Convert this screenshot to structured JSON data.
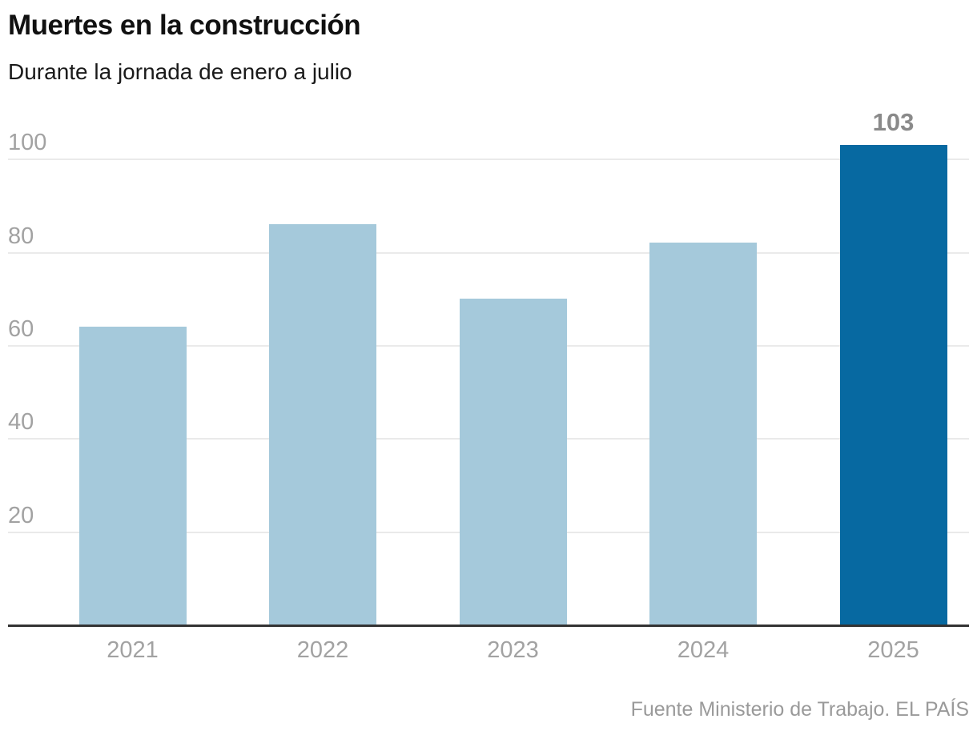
{
  "header": {
    "title": "Muertes en la construcción",
    "subtitle": "Durante la jornada de enero a julio"
  },
  "source": "Fuente Ministerio de Trabajo. EL PAÍS",
  "chart_data": {
    "type": "bar",
    "title": "Muertes en la construcción",
    "subtitle": "Durante la jornada de enero a julio",
    "categories": [
      "2021",
      "2022",
      "2023",
      "2024",
      "2025"
    ],
    "values": [
      64,
      86,
      70,
      82,
      103
    ],
    "highlight_index": 4,
    "annotation": {
      "index": 4,
      "text": "103"
    },
    "yticks": [
      20,
      40,
      60,
      80,
      100
    ],
    "ylim": [
      0,
      103
    ],
    "xlabel": "",
    "ylabel": "",
    "grid": true,
    "legend": false,
    "colors": {
      "bar": "#a5c9db",
      "highlight": "#0769a1",
      "grid": "#eaeaea",
      "axis": "#333333",
      "tick_label": "#a2a2a2",
      "value_label": "#8a8a8a"
    }
  }
}
